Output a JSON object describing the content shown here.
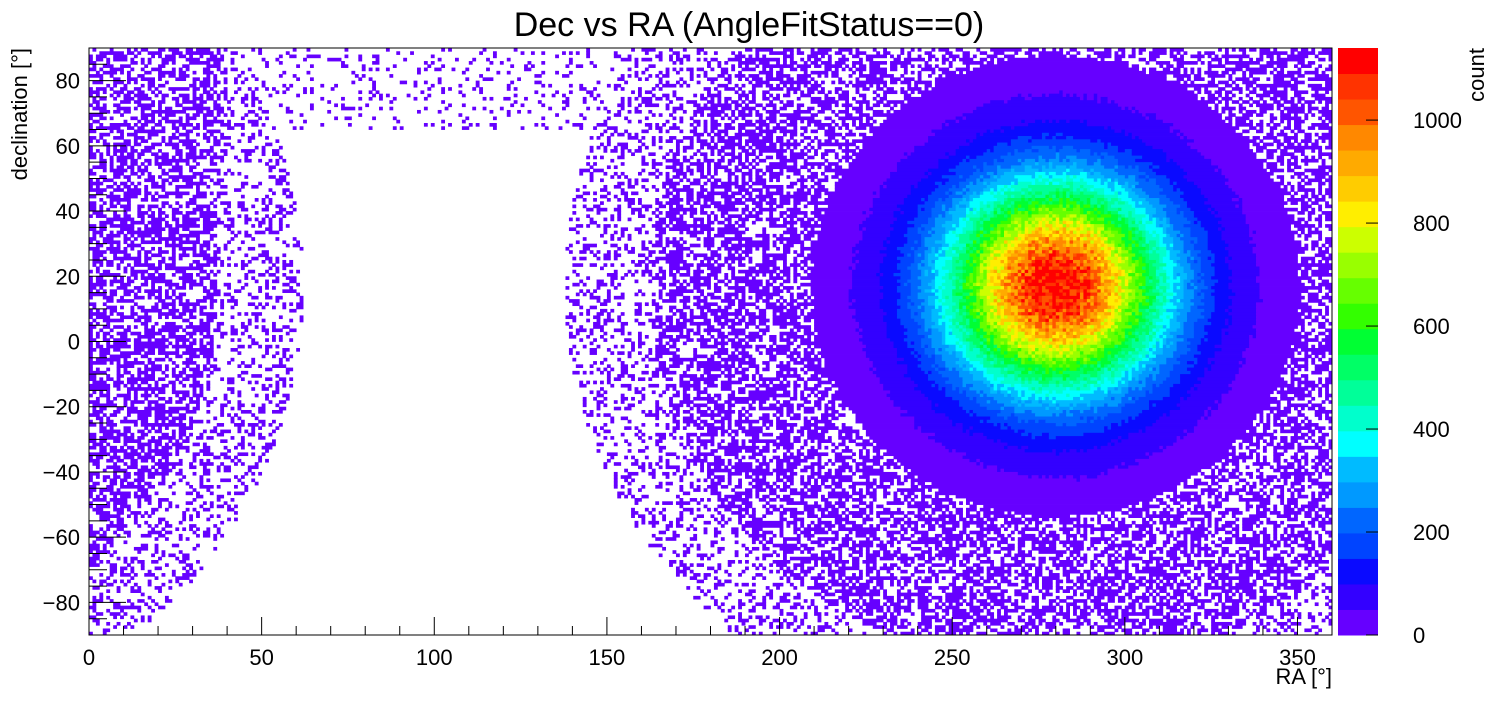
{
  "chart_data": {
    "type": "heatmap",
    "title": "Dec vs RA (AngleFitStatus==0)",
    "xlabel": "RA [°]",
    "ylabel": "declination [°]",
    "zlabel": "count",
    "xlim": [
      0,
      360
    ],
    "ylim": [
      -90,
      90
    ],
    "zlim": [
      0,
      1140
    ],
    "x_ticks": [
      0,
      50,
      100,
      150,
      200,
      250,
      300,
      350
    ],
    "y_ticks": [
      -80,
      -60,
      -40,
      -20,
      0,
      20,
      40,
      60,
      80
    ],
    "z_ticks": [
      0,
      200,
      400,
      600,
      800,
      1000
    ],
    "peak": {
      "ra": 280,
      "dec": 17,
      "count": 1100
    },
    "palette": [
      "#6600ff",
      "#3300ff",
      "#0a0aff",
      "#0044ff",
      "#0066ff",
      "#0099ff",
      "#00bbff",
      "#00ffff",
      "#00ffcc",
      "#00ff99",
      "#00ff66",
      "#00ff33",
      "#33ff00",
      "#66ff00",
      "#99ff00",
      "#ccff00",
      "#ffee00",
      "#ffcc00",
      "#ffaa00",
      "#ff8800",
      "#ff5500",
      "#ff3300",
      "#ff0000"
    ],
    "grid": false,
    "legend": "colorbar right"
  }
}
